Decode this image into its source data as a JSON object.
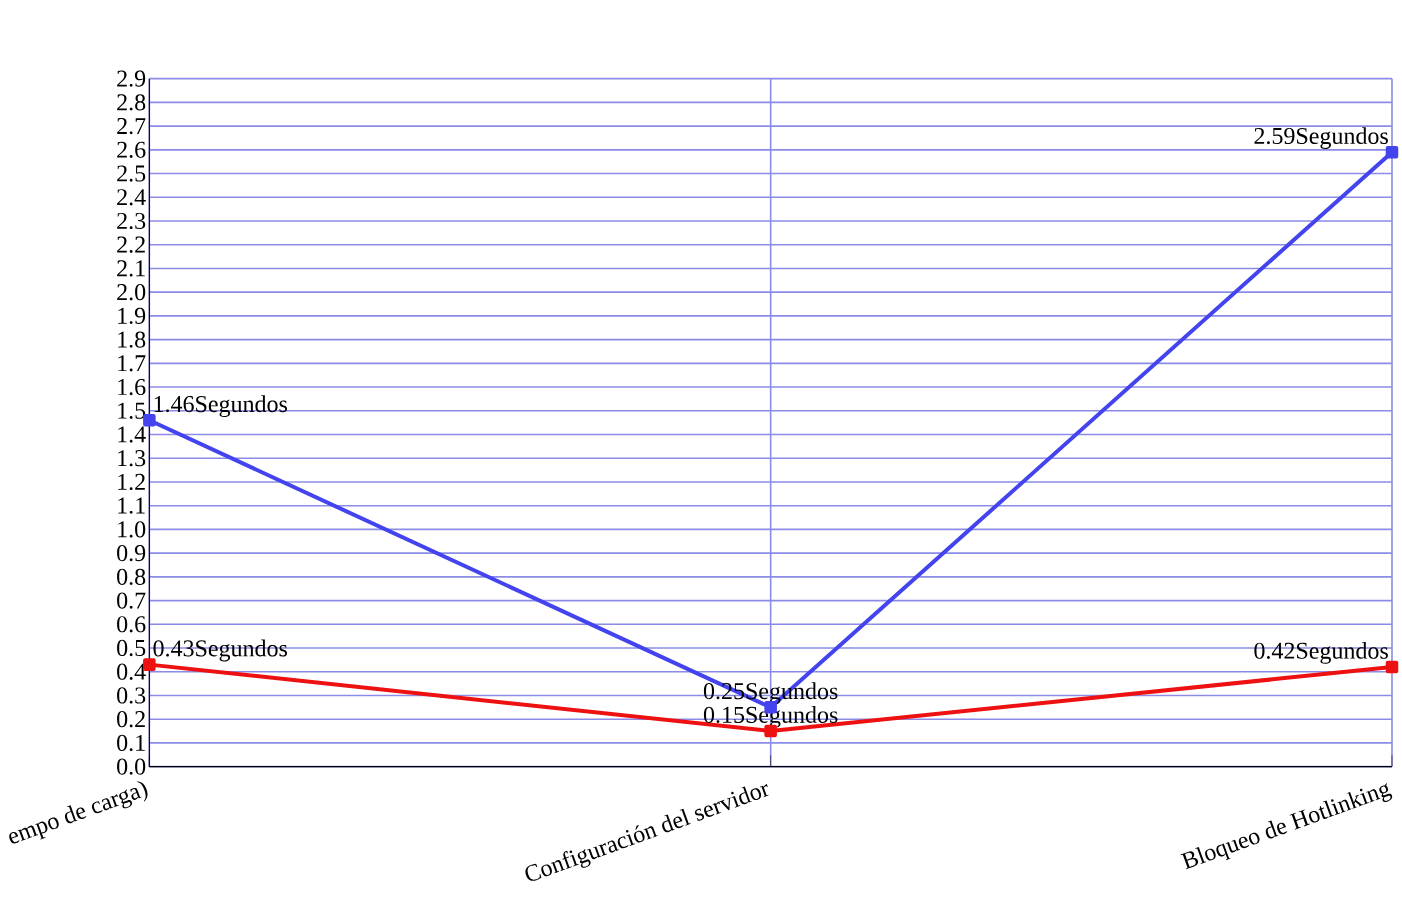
{
  "chart_data": {
    "type": "line",
    "categories": [
      "empo de carga)",
      "Configuración del servidor",
      "Bloqueo de Hotlinking"
    ],
    "series": [
      {
        "color": "#ee1111",
        "values": [
          0.43,
          0.15,
          0.42
        ],
        "value_labels": [
          "0.43Segundos",
          "0.15Segundos",
          "0.42Segundos"
        ]
      },
      {
        "color": "#4444ee",
        "values": [
          1.46,
          0.25,
          2.59
        ],
        "value_labels": [
          "1.46Segundos",
          "0.25Segundos",
          "2.59Segundos"
        ]
      }
    ],
    "ylim": [
      0,
      2.9
    ],
    "yticks": [
      {
        "value": 0,
        "label": "0.0"
      },
      0.1,
      0.2,
      0.3,
      0.4,
      0.5,
      0.6,
      0.7,
      0.8,
      0.9,
      {
        "value": 1,
        "label": "1.0"
      },
      1.1,
      1.2,
      1.3,
      1.4,
      1.5,
      1.6,
      1.7,
      1.8,
      1.9,
      {
        "value": 2,
        "label": "2.0"
      },
      2.1,
      2.2,
      2.3,
      2.4,
      2.5,
      2.6,
      2.7,
      2.8,
      2.9
    ],
    "grid": true,
    "marker": "square",
    "line_style": "solid"
  }
}
